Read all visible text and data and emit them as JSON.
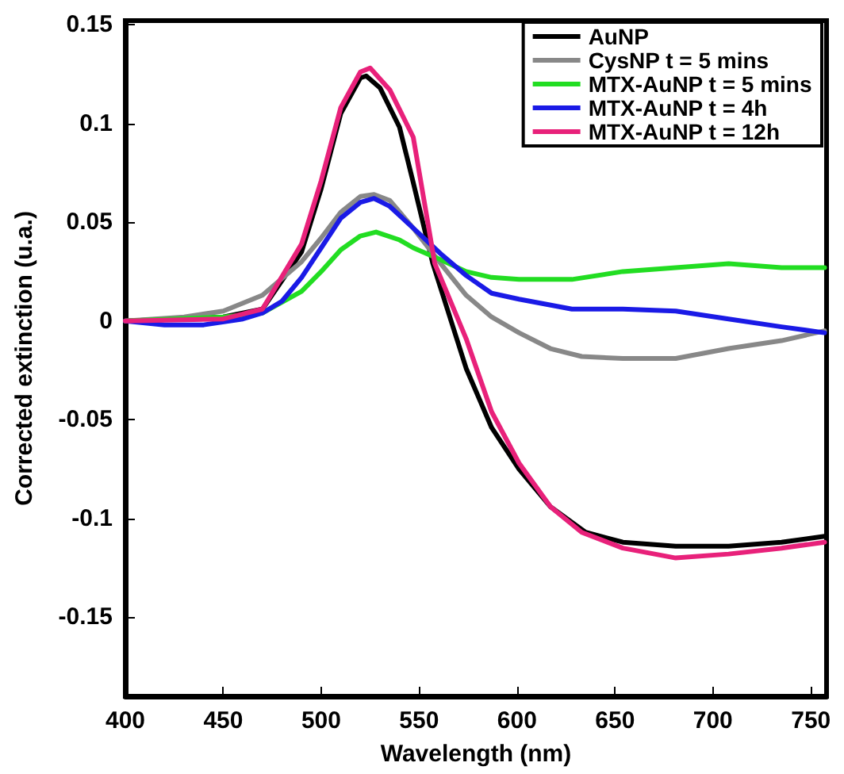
{
  "chart_data": {
    "type": "line",
    "xlabel": "Wavelength (nm)",
    "ylabel": "Corrected extinction (u.a.)",
    "xlim": [
      400,
      758
    ],
    "xticks": [
      400,
      450,
      500,
      550,
      600,
      650,
      700,
      750
    ],
    "ylim": [
      -0.19,
      0.152
    ],
    "yticks": [
      -0.15,
      -0.1,
      -0.05,
      0,
      0.05,
      0.1,
      0.15
    ],
    "grid": false,
    "legend": "top right",
    "marker": "none",
    "line_style": "solid",
    "series": [
      {
        "name": "AuNP",
        "color": "#000000",
        "x": [
          400,
          450,
          470,
          490,
          500,
          510,
          520,
          523,
          530,
          540,
          547,
          557,
          574,
          587,
          601,
          617,
          635,
          654,
          681,
          708,
          735,
          757
        ],
        "values": [
          0,
          0.002,
          0.006,
          0.035,
          0.067,
          0.105,
          0.123,
          0.124,
          0.118,
          0.098,
          0.07,
          0.029,
          -0.024,
          -0.054,
          -0.075,
          -0.094,
          -0.107,
          -0.112,
          -0.114,
          -0.114,
          -0.112,
          -0.109
        ]
      },
      {
        "name": "CysNP t = 5 mins",
        "color": "#888888",
        "x": [
          400,
          430,
          450,
          470,
          490,
          500,
          510,
          520,
          527,
          535,
          547,
          561,
          574,
          587,
          601,
          617,
          633,
          654,
          681,
          708,
          735,
          757
        ],
        "values": [
          0,
          0.002,
          0.005,
          0.013,
          0.03,
          0.042,
          0.055,
          0.063,
          0.064,
          0.061,
          0.047,
          0.029,
          0.013,
          0.002,
          -0.006,
          -0.014,
          -0.018,
          -0.019,
          -0.019,
          -0.014,
          -0.01,
          -0.005
        ]
      },
      {
        "name": "MTX-AuNP t = 5 mins",
        "color": "#22dd22",
        "x": [
          400,
          450,
          470,
          490,
          500,
          510,
          520,
          528,
          540,
          547,
          561,
          574,
          587,
          601,
          628,
          654,
          681,
          708,
          735,
          757
        ],
        "values": [
          0,
          0.002,
          0.004,
          0.015,
          0.025,
          0.036,
          0.043,
          0.045,
          0.041,
          0.037,
          0.031,
          0.025,
          0.022,
          0.021,
          0.021,
          0.025,
          0.027,
          0.029,
          0.027,
          0.027
        ]
      },
      {
        "name": "MTX-AuNP t = 4h",
        "color": "#1a1ae6",
        "x": [
          400,
          420,
          440,
          460,
          470,
          480,
          490,
          500,
          510,
          520,
          527,
          535,
          547,
          561,
          574,
          587,
          601,
          628,
          654,
          681,
          708,
          735,
          757
        ],
        "values": [
          0,
          -0.002,
          -0.002,
          0.001,
          0.004,
          0.01,
          0.022,
          0.037,
          0.052,
          0.06,
          0.062,
          0.058,
          0.047,
          0.034,
          0.023,
          0.014,
          0.011,
          0.006,
          0.006,
          0.005,
          0.001,
          -0.003,
          -0.006
        ]
      },
      {
        "name": "MTX-AuNP t = 12h",
        "color": "#e8217a",
        "x": [
          400,
          450,
          470,
          490,
          500,
          510,
          520,
          525,
          535,
          547,
          558,
          574,
          587,
          601,
          617,
          633,
          654,
          681,
          708,
          735,
          757
        ],
        "values": [
          0,
          0.001,
          0.006,
          0.039,
          0.071,
          0.108,
          0.126,
          0.128,
          0.117,
          0.093,
          0.029,
          -0.009,
          -0.046,
          -0.072,
          -0.094,
          -0.107,
          -0.115,
          -0.12,
          -0.118,
          -0.115,
          -0.112
        ]
      }
    ]
  }
}
